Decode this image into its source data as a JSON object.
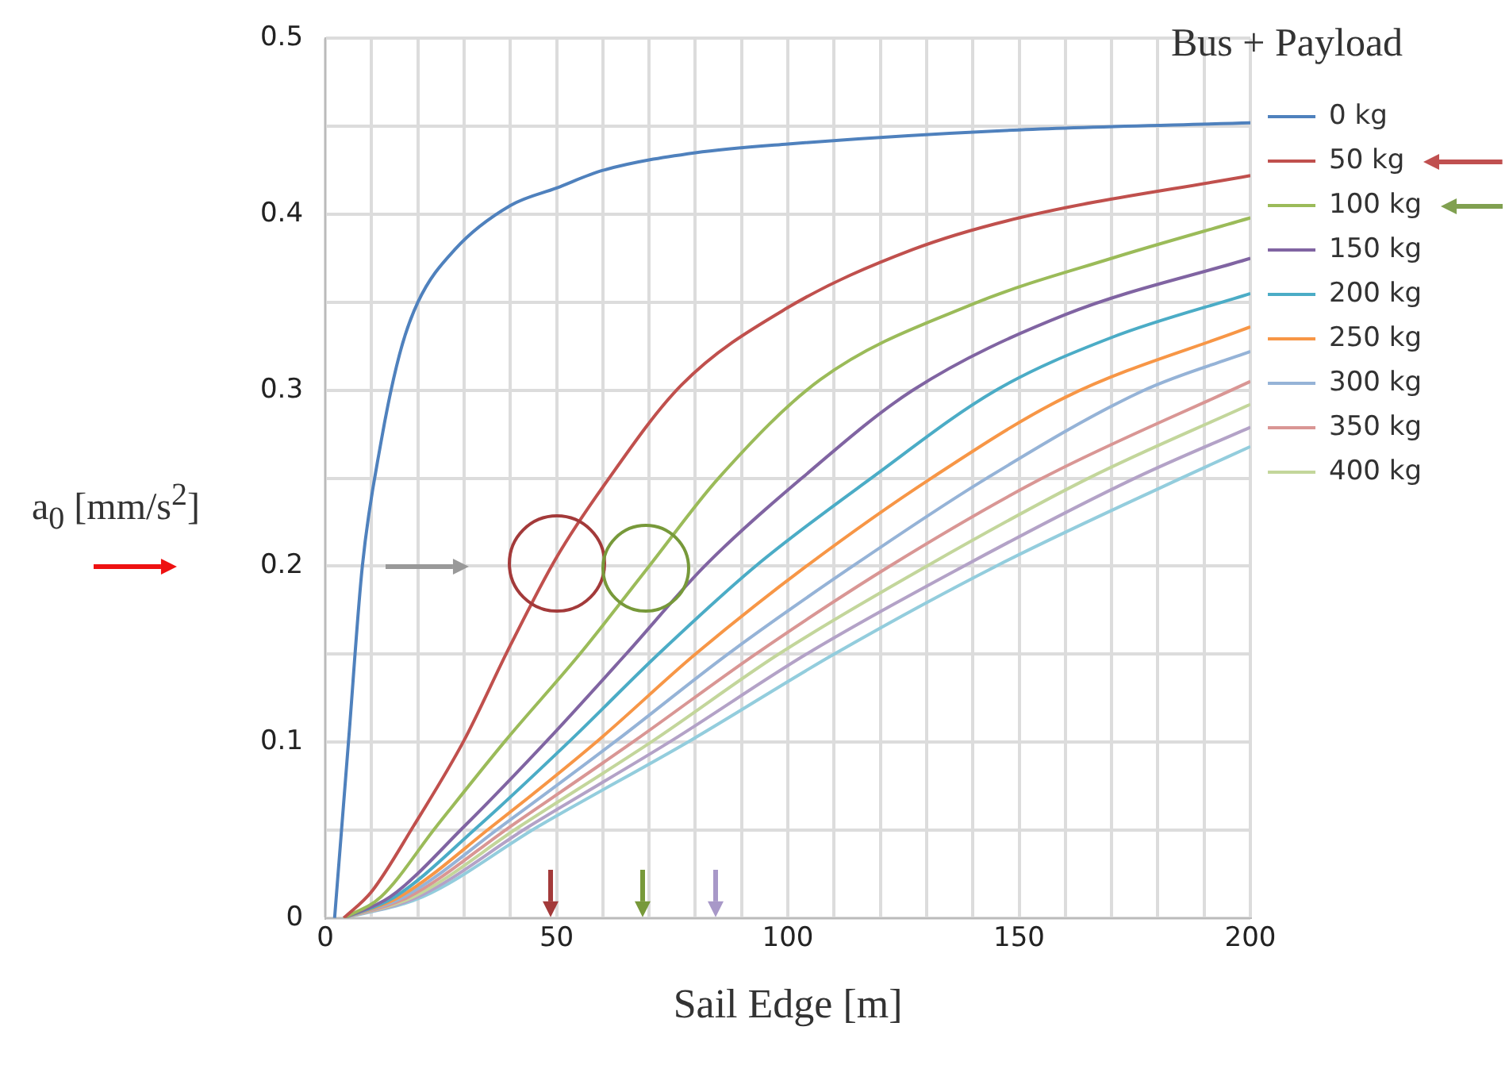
{
  "chart_data": {
    "type": "line",
    "xlabel": "Sail Edge [m]",
    "ylabel": "a$_{0}$ [mm/s$^{2}$]",
    "legend_title": "Bus + Payload",
    "legend": "right",
    "grid": true,
    "line_style": "solid",
    "xlim": [
      0,
      200
    ],
    "ylim": [
      0,
      0.5
    ],
    "xticks": [
      0,
      {
        "value": 10,
        "label": null
      },
      {
        "value": 20,
        "label": null
      },
      {
        "value": 30,
        "label": null
      },
      {
        "value": 40,
        "label": null
      },
      50,
      {
        "value": 60,
        "label": null
      },
      {
        "value": 70,
        "label": null
      },
      {
        "value": 80,
        "label": null
      },
      {
        "value": 90,
        "label": null
      },
      100,
      {
        "value": 110,
        "label": null
      },
      {
        "value": 120,
        "label": null
      },
      {
        "value": 130,
        "label": null
      },
      {
        "value": 140,
        "label": null
      },
      150,
      {
        "value": 160,
        "label": null
      },
      {
        "value": 170,
        "label": null
      },
      {
        "value": 180,
        "label": null
      },
      {
        "value": 190,
        "label": null
      },
      200
    ],
    "yticks": [
      0,
      {
        "value": 0.05,
        "label": null
      },
      0.1,
      {
        "value": 0.15,
        "label": null
      },
      0.2,
      {
        "value": 0.25,
        "label": null
      },
      0.3,
      {
        "value": 0.35,
        "label": null
      },
      0.4,
      {
        "value": 0.45,
        "label": null
      },
      0.5
    ],
    "series": [
      {
        "name": "0 kg",
        "color": "#4f81bd",
        "x": [
          2,
          5,
          8,
          12,
          16,
          20,
          28,
          40,
          50,
          60,
          80,
          100,
          150,
          200
        ],
        "values": [
          0,
          0.1,
          0.2,
          0.27,
          0.32,
          0.35,
          0.38,
          0.405,
          0.415,
          0.425,
          0.435,
          0.44,
          0.448,
          0.452
        ]
      },
      {
        "name": "50 kg",
        "color": "#c0504d",
        "x": [
          4,
          10,
          19,
          30,
          40,
          50,
          60,
          77,
          100,
          127,
          150,
          200
        ],
        "values": [
          0,
          0.015,
          0.052,
          0.101,
          0.155,
          0.205,
          0.245,
          0.303,
          0.347,
          0.38,
          0.398,
          0.422
        ]
      },
      {
        "name": "100 kg",
        "color": "#9bbb59",
        "x": [
          4,
          12,
          24,
          39,
          55,
          70,
          85,
          107,
          140,
          170,
          200
        ],
        "values": [
          0,
          0.012,
          0.052,
          0.101,
          0.15,
          0.2,
          0.25,
          0.306,
          0.349,
          0.375,
          0.398
        ]
      },
      {
        "name": "150 kg",
        "color": "#8064a2",
        "x": [
          4,
          14,
          30,
          48,
          65,
          82,
          103,
          127,
          160,
          200
        ],
        "values": [
          0,
          0.012,
          0.052,
          0.101,
          0.15,
          0.2,
          0.25,
          0.3,
          0.343,
          0.375
        ]
      },
      {
        "name": "200 kg",
        "color": "#4bacc6",
        "x": [
          4,
          15,
          33,
          53,
          72,
          93,
          118,
          145,
          170,
          200
        ],
        "values": [
          0,
          0.012,
          0.052,
          0.101,
          0.15,
          0.2,
          0.25,
          0.3,
          0.33,
          0.355
        ]
      },
      {
        "name": "250 kg",
        "color": "#f79646",
        "x": [
          4,
          16,
          36,
          59,
          80,
          104,
          131,
          160,
          200
        ],
        "values": [
          0,
          0.012,
          0.052,
          0.101,
          0.15,
          0.2,
          0.25,
          0.296,
          0.336
        ]
      },
      {
        "name": "300 kg",
        "color": "#95b3d7",
        "x": [
          4,
          17,
          38,
          63,
          87,
          114,
          143,
          177,
          200
        ],
        "values": [
          0,
          0.012,
          0.052,
          0.101,
          0.15,
          0.2,
          0.25,
          0.3,
          0.322
        ]
      },
      {
        "name": "350 kg",
        "color": "#d99694",
        "x": [
          4,
          18,
          40,
          67,
          93,
          122,
          155,
          200
        ],
        "values": [
          0,
          0.012,
          0.052,
          0.101,
          0.15,
          0.2,
          0.25,
          0.305
        ]
      },
      {
        "name": "400 kg",
        "color": "#c3d69b",
        "x": [
          4,
          19,
          42,
          71,
          98,
          130,
          165,
          200
        ],
        "values": [
          0,
          0.012,
          0.052,
          0.101,
          0.15,
          0.2,
          0.25,
          0.292
        ]
      },
      {
        "color": "#b3a2c7",
        "x": [
          4,
          20,
          44,
          75,
          104,
          138,
          175,
          200
        ],
        "values": [
          0,
          0.012,
          0.052,
          0.101,
          0.15,
          0.2,
          0.25,
          0.279
        ]
      },
      {
        "color": "#93cddd",
        "x": [
          4,
          21,
          46,
          79,
          110,
          145,
          185,
          200
        ],
        "values": [
          0,
          0.012,
          0.052,
          0.101,
          0.15,
          0.2,
          0.25,
          0.268
        ]
      }
    ]
  }
}
